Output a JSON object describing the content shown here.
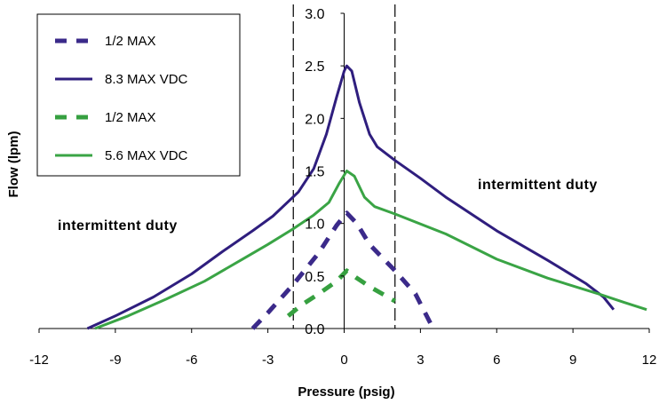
{
  "chart_data": {
    "type": "line",
    "title": "",
    "xlabel": "Pressure (psig)",
    "ylabel": "Flow (lpm)",
    "xlim": [
      -12,
      12
    ],
    "ylim": [
      0,
      3.0
    ],
    "x_ticks": [
      -12,
      -9,
      -6,
      -3,
      0,
      3,
      6,
      9,
      12
    ],
    "y_ticks": [
      "0.0",
      "0.5",
      "1.0",
      "1.5",
      "2.0",
      "2.5",
      "3.0"
    ],
    "grid": false,
    "legend_position": "top-left",
    "vertical_reference_lines": [
      -2,
      2
    ],
    "annotations": [
      {
        "text": "intermittent duty",
        "position": "left"
      },
      {
        "text": "intermittent duty",
        "position": "right"
      }
    ],
    "series": [
      {
        "name": "1/2 MAX",
        "color": "#3b2a8a",
        "style": "dashed",
        "points": [
          [
            -3.6,
            0.0
          ],
          [
            -3.0,
            0.15
          ],
          [
            -2.0,
            0.42
          ],
          [
            -1.0,
            0.72
          ],
          [
            -0.3,
            0.98
          ],
          [
            0.1,
            1.1
          ],
          [
            0.5,
            1.0
          ],
          [
            1.0,
            0.8
          ],
          [
            2.0,
            0.55
          ],
          [
            2.8,
            0.33
          ],
          [
            3.5,
            0.0
          ]
        ]
      },
      {
        "name": "8.3 MAX VDC",
        "color": "#2f1e7e",
        "style": "solid",
        "points": [
          [
            -10.1,
            0.0
          ],
          [
            -9.0,
            0.12
          ],
          [
            -7.5,
            0.3
          ],
          [
            -6.0,
            0.52
          ],
          [
            -4.8,
            0.73
          ],
          [
            -3.6,
            0.93
          ],
          [
            -2.8,
            1.07
          ],
          [
            -1.8,
            1.3
          ],
          [
            -1.2,
            1.52
          ],
          [
            -0.7,
            1.85
          ],
          [
            -0.3,
            2.2
          ],
          [
            0.0,
            2.45
          ],
          [
            0.1,
            2.5
          ],
          [
            0.3,
            2.45
          ],
          [
            0.6,
            2.15
          ],
          [
            1.0,
            1.85
          ],
          [
            1.3,
            1.73
          ],
          [
            2.0,
            1.6
          ],
          [
            3.0,
            1.43
          ],
          [
            4.0,
            1.25
          ],
          [
            6.0,
            0.93
          ],
          [
            8.0,
            0.65
          ],
          [
            9.5,
            0.43
          ],
          [
            10.2,
            0.3
          ],
          [
            10.6,
            0.18
          ]
        ]
      },
      {
        "name": "1/2 MAX",
        "color": "#36a040",
        "style": "dashed",
        "points": [
          [
            -2.2,
            0.12
          ],
          [
            -1.7,
            0.22
          ],
          [
            -1.0,
            0.33
          ],
          [
            -0.3,
            0.45
          ],
          [
            0.1,
            0.55
          ],
          [
            0.5,
            0.48
          ],
          [
            1.0,
            0.4
          ],
          [
            2.0,
            0.26
          ]
        ]
      },
      {
        "name": "5.6 MAX VDC",
        "color": "#3aa445",
        "style": "solid",
        "points": [
          [
            -9.8,
            0.0
          ],
          [
            -8.5,
            0.12
          ],
          [
            -7.0,
            0.28
          ],
          [
            -5.5,
            0.45
          ],
          [
            -4.0,
            0.66
          ],
          [
            -3.0,
            0.8
          ],
          [
            -2.0,
            0.95
          ],
          [
            -1.2,
            1.08
          ],
          [
            -0.6,
            1.2
          ],
          [
            -0.2,
            1.38
          ],
          [
            0.1,
            1.5
          ],
          [
            0.4,
            1.45
          ],
          [
            0.8,
            1.25
          ],
          [
            1.2,
            1.16
          ],
          [
            2.0,
            1.09
          ],
          [
            4.0,
            0.9
          ],
          [
            6.0,
            0.66
          ],
          [
            8.0,
            0.48
          ],
          [
            10.0,
            0.33
          ],
          [
            11.0,
            0.25
          ],
          [
            11.9,
            0.18
          ]
        ]
      }
    ]
  }
}
